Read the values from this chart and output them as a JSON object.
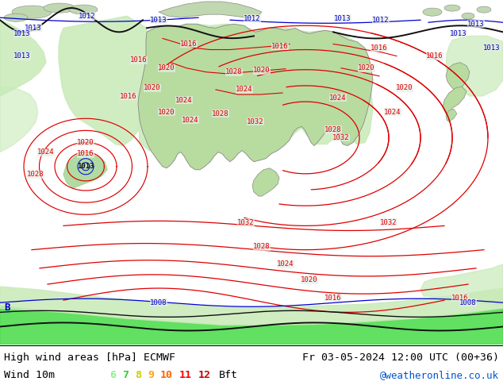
{
  "title_left": "High wind areas [hPa] ECMWF",
  "title_right": "Fr 03-05-2024 12:00 UTC (00+36)",
  "subtitle_left": "Wind 10m",
  "wind_levels": [
    "6",
    "7",
    "8",
    "9",
    "10",
    "11",
    "12"
  ],
  "wind_colors": [
    "#90ee90",
    "#32cd32",
    "#cdcd00",
    "#ffa500",
    "#ff6400",
    "#ff0000",
    "#c80000"
  ],
  "wind_unit": "Bft",
  "credit": "@weatheronline.co.uk",
  "bg_color": "#ffffff",
  "ocean_color": "#e8ede8",
  "land_color": "#b8dba0",
  "wind_area_color": "#c8eab8",
  "wind_area_color2": "#a8d898",
  "credit_color": "#0055cc",
  "red": "#dd0000",
  "blue": "#0000cc",
  "black": "#111111"
}
